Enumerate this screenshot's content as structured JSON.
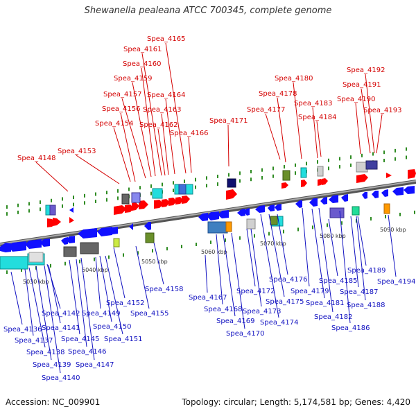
{
  "title": "Shewanella pealeana ATCC 700345, complete genome",
  "footer": {
    "accession": "Accession: NC_009901",
    "topology": "Topology: circular; Length: 5,174,581 bp; Genes: 4,420"
  },
  "colors": {
    "top_label": "#d40000",
    "bottom_label": "#1010c0",
    "forward_gene": "#ff0000",
    "reverse_gene": "#1010ff",
    "backbone": "#888888",
    "tick": "#2e8b22"
  },
  "scale_labels": [
    "5030 kbp",
    "5040 kbp",
    "5050 kbp",
    "5060 kbp",
    "5070 kbp",
    "5080 kbp",
    "5090 kbp"
  ],
  "top_labels": [
    "Spea_4148",
    "Spea_4153",
    "Spea_4154",
    "Spea_4156",
    "Spea_4157",
    "Spea_4159",
    "Spea_4160",
    "Spea_4161",
    "Spea_4165",
    "Spea_4164",
    "Spea_4163",
    "Spea_4162",
    "Spea_4166",
    "Spea_4171",
    "Spea_4177",
    "Spea_4178",
    "Spea_4180",
    "Spea_4183",
    "Spea_4184",
    "Spea_4190",
    "Spea_4191",
    "Spea_4192",
    "Spea_4193"
  ],
  "bottom_labels": [
    "Spea_4136",
    "Spea_4137",
    "Spea_4138",
    "Spea_4139",
    "Spea_4140",
    "Spea_4141",
    "Spea_4142",
    "Spea_4145",
    "Spea_4146",
    "Spea_4147",
    "Spea_4149",
    "Spea_4150",
    "Spea_4151",
    "Spea_4152",
    "Spea_4155",
    "Spea_4158",
    "Spea_4167",
    "Spea_4168",
    "Spea_4169",
    "Spea_4170",
    "Spea_4172",
    "Spea_4173",
    "Spea_4174",
    "Spea_4175",
    "Spea_4176",
    "Spea_4179",
    "Spea_4181",
    "Spea_4182",
    "Spea_4185",
    "Spea_4186",
    "Spea_4187",
    "Spea_4188",
    "Spea_4189",
    "Spea_4194"
  ]
}
